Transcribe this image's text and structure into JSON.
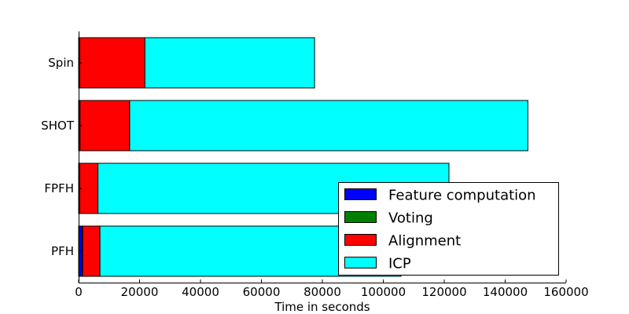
{
  "chart_data": {
    "type": "bar",
    "orientation": "horizontal",
    "stacked": true,
    "categories": [
      "PFH",
      "FPFH",
      "SHOT",
      "Spin"
    ],
    "series": [
      {
        "name": "Feature computation",
        "color": "#0000ff",
        "values": [
          1200,
          300,
          400,
          300
        ]
      },
      {
        "name": "Voting",
        "color": "#008000",
        "values": [
          100,
          50,
          50,
          50
        ]
      },
      {
        "name": "Alignment",
        "color": "#ff0000",
        "values": [
          5700,
          6000,
          16300,
          21400
        ]
      },
      {
        "name": "ICP",
        "color": "#00ffff",
        "values": [
          98800,
          115200,
          130700,
          55700
        ]
      }
    ],
    "xlabel": "Time in seconds",
    "ylabel": "",
    "title": "",
    "xlim": [
      0,
      160000
    ],
    "xticks": [
      0,
      20000,
      40000,
      60000,
      80000,
      100000,
      120000,
      140000,
      160000
    ],
    "xtick_labels": [
      "0",
      "20000",
      "40000",
      "60000",
      "80000",
      "100000",
      "120000",
      "140000",
      "160000"
    ],
    "grid": false,
    "legend_position": "lower-right"
  }
}
